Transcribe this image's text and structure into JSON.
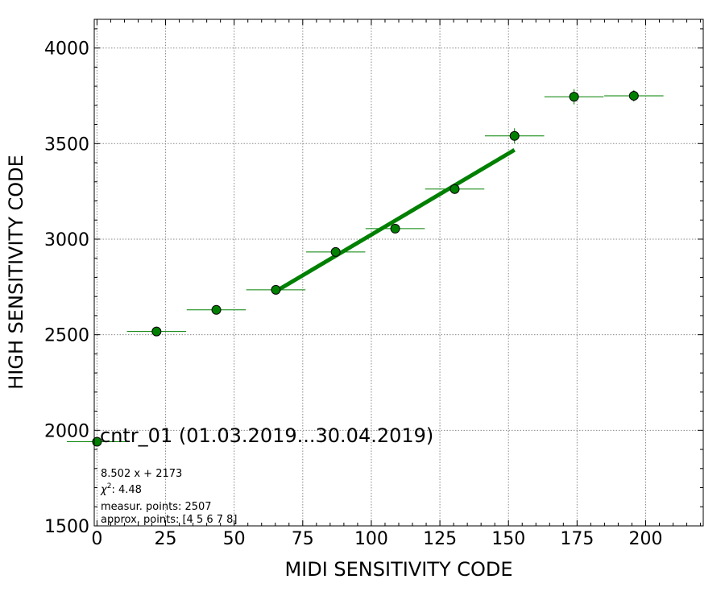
{
  "chart_data": {
    "type": "scatter",
    "title": "cntr_01 (01.03.2019...30.04.2019)",
    "xlabel": "MIDI SENSITIVITY CODE",
    "ylabel": "HIGH SENSITIVITY CODE",
    "xlim": [
      -1,
      221
    ],
    "ylim": [
      1500,
      4150
    ],
    "xticks": [
      0,
      25,
      50,
      75,
      100,
      125,
      150,
      175,
      200
    ],
    "yticks": [
      1500,
      2000,
      2500,
      3000,
      3500,
      4000
    ],
    "grid": true,
    "marker_color": "#008000",
    "marker_edge_color": "#000000",
    "fit_color": "#008000",
    "points": [
      {
        "x": 0,
        "y": 1940,
        "xerr": 11,
        "yerr": 5
      },
      {
        "x": 21.7,
        "y": 2517,
        "xerr": 10.8,
        "yerr": 8
      },
      {
        "x": 43.5,
        "y": 2630,
        "xerr": 10.8,
        "yerr": 8
      },
      {
        "x": 65.2,
        "y": 2735,
        "xerr": 10.8,
        "yerr": 10
      },
      {
        "x": 87.0,
        "y": 2933,
        "xerr": 10.8,
        "yerr": 12
      },
      {
        "x": 108.7,
        "y": 3055,
        "xerr": 10.8,
        "yerr": 18
      },
      {
        "x": 130.4,
        "y": 3262,
        "xerr": 10.8,
        "yerr": 25
      },
      {
        "x": 152.2,
        "y": 3540,
        "xerr": 10.8,
        "yerr": 40
      },
      {
        "x": 173.9,
        "y": 3745,
        "xerr": 10.8,
        "yerr": 40
      },
      {
        "x": 195.7,
        "y": 3750,
        "xerr": 10.8,
        "yerr": 30
      }
    ],
    "fit": {
      "slope": 8.502,
      "intercept": 2173,
      "x_range": [
        65.2,
        152.2
      ]
    },
    "annotations": {
      "equation": "8.502 x + 2173",
      "chi2_value": ": 4.48",
      "measur_points": "measur. points: 2507",
      "approx_points": "approx. points: [4 5 6 7 8]"
    }
  }
}
